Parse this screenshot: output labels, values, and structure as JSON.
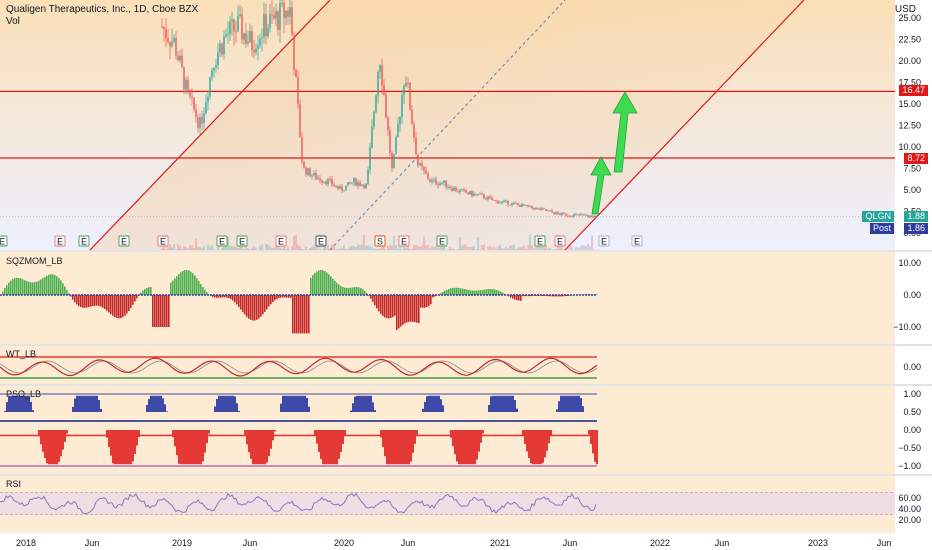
{
  "header": {
    "title": "Qualigen Therapeutics, Inc., 1D, Cboe BZX",
    "vol_label": "Vol",
    "currency": "USD"
  },
  "colors": {
    "up": "#26a69a",
    "down": "#ef5350",
    "hline": "#e01818",
    "channel": "#e01818",
    "arrow": "#3ddc50",
    "blue": "#2f3d9c",
    "rsi": "#7e6fb5"
  },
  "tags": {
    "level_high": "16.47",
    "level_low": "8.72",
    "ticker": "QLGN",
    "ticker_price": "1.88",
    "post_label": "Post",
    "post_price": "1.86"
  },
  "chart_data": [
    {
      "type": "line",
      "pane": "price",
      "title": "Qualigen Therapeutics, Inc., 1D, Cboe BZX",
      "ylabel": "USD",
      "ylim": [
        0,
        26
      ],
      "y_ticks": [
        "25.00",
        "22.50",
        "20.00",
        "17.50",
        "15.00",
        "12.50",
        "10.00",
        "7.50",
        "5.00",
        "2.50",
        "0.00"
      ],
      "x_ticks": [
        "2018",
        "Jun",
        "2019",
        "Jun",
        "2020",
        "Jun",
        "2021",
        "Jun",
        "2022",
        "Jun",
        "2023",
        "Jun"
      ],
      "horizontal_levels": [
        16.47,
        8.72
      ],
      "last_price": 1.88,
      "post_price": 1.86,
      "series": [
        {
          "x": [
            "2018-10",
            "2018-11",
            "2018-12",
            "2019-01",
            "2019-02",
            "2019-03",
            "2019-04",
            "2019-05",
            "2019-06",
            "2019-07",
            "2019-08",
            "2019-09",
            "2019-10",
            "2019-11",
            "2019-12",
            "2020-01",
            "2020-02",
            "2020-03",
            "2020-04",
            "2020-05",
            "2020-06",
            "2020-07",
            "2020-08",
            "2020-09",
            "2020-10",
            "2020-11",
            "2020-12",
            "2021-01",
            "2021-02",
            "2021-03",
            "2021-04",
            "2021-05",
            "2021-06",
            "2021-07",
            "2021-08"
          ],
          "values": [
            24,
            22,
            16,
            12.5,
            20,
            23,
            24,
            22,
            24,
            25,
            26,
            7.5,
            6.5,
            6,
            5,
            6,
            5.5,
            21,
            7,
            19,
            8,
            6,
            5.8,
            5,
            4.6,
            4.3,
            3.7,
            3.5,
            3.2,
            2.9,
            2.6,
            2.2,
            2.1,
            2.0,
            1.88
          ]
        }
      ],
      "earnings_markers": [
        "E",
        "E",
        "E",
        "E",
        "E",
        "E",
        "E",
        "E",
        "E",
        "S",
        "E",
        "E",
        "E",
        "E",
        "E",
        "E"
      ]
    },
    {
      "type": "bar",
      "pane": "oscillator",
      "title": "SQZMOM_LB",
      "ylim": [
        -15,
        15
      ],
      "y_ticks": [
        "10.00",
        "0.00",
        "−10.00"
      ]
    },
    {
      "type": "line",
      "pane": "oscillator",
      "title": "WT_LB",
      "y_ticks": [
        "0.00"
      ]
    },
    {
      "type": "area",
      "pane": "oscillator",
      "title": "PSO_LB",
      "ylim": [
        -1,
        1
      ],
      "y_ticks": [
        "1.00",
        "0.50",
        "0.00",
        "−0.50",
        "−1.00"
      ]
    },
    {
      "type": "line",
      "pane": "oscillator",
      "title": "RSI",
      "ylim": [
        20,
        80
      ],
      "y_ticks": [
        "60.00",
        "40.00",
        "20.00"
      ]
    }
  ]
}
